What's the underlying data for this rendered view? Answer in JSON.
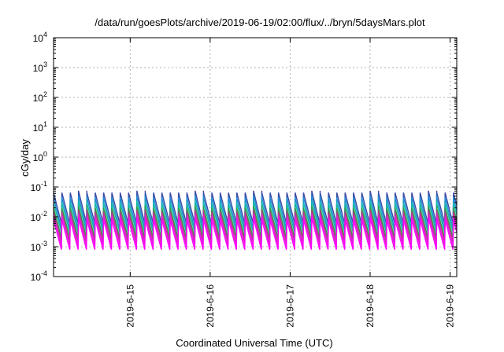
{
  "chart_data": {
    "type": "line",
    "title": "/data/run/goesPlots/archive/2019-06-19/02:00/flux/../bryn/5daysMars.plot",
    "xlabel": "Coordinated Universal Time (UTC)",
    "ylabel": "cGy/day",
    "y_scale": "log",
    "ylim": [
      0.0001,
      10000
    ],
    "xlim": [
      "2019-06-14 01:00",
      "2019-06-19 02:00"
    ],
    "grid": true,
    "legend": "none",
    "y_ticks": [
      {
        "base": "10",
        "exp": "-4",
        "value": 0.0001
      },
      {
        "base": "10",
        "exp": "-3",
        "value": 0.001
      },
      {
        "base": "10",
        "exp": "-2",
        "value": 0.01
      },
      {
        "base": "10",
        "exp": "-1",
        "value": 0.1
      },
      {
        "base": "10",
        "exp": "0",
        "value": 1
      },
      {
        "base": "10",
        "exp": "1",
        "value": 10
      },
      {
        "base": "10",
        "exp": "2",
        "value": 100
      },
      {
        "base": "10",
        "exp": "3",
        "value": 1000
      },
      {
        "base": "10",
        "exp": "4",
        "value": 10000
      }
    ],
    "x_ticks": [
      "2019-6-15",
      "2019-6-16",
      "2019-6-17",
      "2019-6-18",
      "2019-6-19"
    ],
    "x_tick_times": [
      "2019-06-15 00:00",
      "2019-06-16 00:00",
      "2019-06-17 00:00",
      "2019-06-18 00:00",
      "2019-06-19 00:00"
    ],
    "sawtooth": {
      "period_hours": 2.5,
      "start": "2019-06-14 01:00"
    },
    "series": [
      {
        "color": "#3b4ba8",
        "peak": 0.065,
        "trough": 0.006
      },
      {
        "color": "#1e8fd4",
        "peak": 0.045,
        "trough": 0.004
      },
      {
        "color": "#12b8a8",
        "peak": 0.03,
        "trough": 0.003
      },
      {
        "color": "#2e9e46",
        "peak": 0.02,
        "trough": 0.002
      },
      {
        "color": "#b43c8c",
        "peak": 0.015,
        "trough": 0.0015
      },
      {
        "color": "#e020d0",
        "peak": 0.011,
        "trough": 0.0011
      },
      {
        "color": "#ff00ff",
        "peak": 0.008,
        "trough": 0.0008
      }
    ]
  }
}
